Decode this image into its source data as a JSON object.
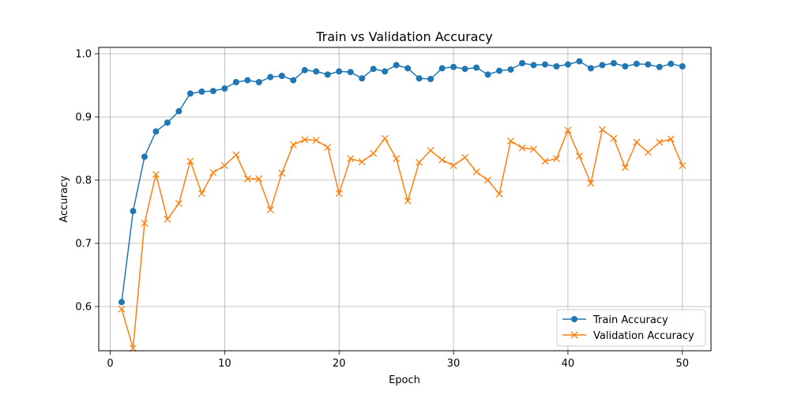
{
  "chart_data": {
    "type": "line",
    "title": "Train vs Validation Accuracy",
    "xlabel": "Epoch",
    "ylabel": "Accuracy",
    "xlim": [
      -1,
      52.5
    ],
    "ylim": [
      0.53,
      1.01
    ],
    "x_ticks": [
      0,
      10,
      20,
      30,
      40,
      50
    ],
    "y_ticks": [
      0.6,
      0.7,
      0.8,
      0.9,
      1.0
    ],
    "grid": true,
    "legend_position": "bottom-right",
    "x": [
      1,
      2,
      3,
      4,
      5,
      6,
      7,
      8,
      9,
      10,
      11,
      12,
      13,
      14,
      15,
      16,
      17,
      18,
      19,
      20,
      21,
      22,
      23,
      24,
      25,
      26,
      27,
      28,
      29,
      30,
      31,
      32,
      33,
      34,
      35,
      36,
      37,
      38,
      39,
      40,
      41,
      42,
      43,
      44,
      45,
      46,
      47,
      48,
      49,
      50
    ],
    "series": [
      {
        "name": "Train Accuracy",
        "color": "#1f77b4",
        "marker": "circle",
        "values": [
          0.607,
          0.751,
          0.837,
          0.877,
          0.891,
          0.909,
          0.937,
          0.94,
          0.941,
          0.945,
          0.955,
          0.958,
          0.955,
          0.963,
          0.965,
          0.958,
          0.974,
          0.972,
          0.967,
          0.972,
          0.971,
          0.961,
          0.976,
          0.972,
          0.982,
          0.977,
          0.961,
          0.96,
          0.977,
          0.979,
          0.976,
          0.978,
          0.967,
          0.973,
          0.975,
          0.985,
          0.982,
          0.983,
          0.98,
          0.983,
          0.988,
          0.977,
          0.982,
          0.985,
          0.98,
          0.984,
          0.983,
          0.979,
          0.984,
          0.98
        ]
      },
      {
        "name": "Validation Accuracy",
        "color": "#ff7f0e",
        "marker": "x",
        "values": [
          0.596,
          0.534,
          0.732,
          0.809,
          0.738,
          0.763,
          0.83,
          0.779,
          0.812,
          0.823,
          0.84,
          0.802,
          0.802,
          0.753,
          0.811,
          0.856,
          0.864,
          0.863,
          0.852,
          0.779,
          0.834,
          0.829,
          0.842,
          0.866,
          0.834,
          0.767,
          0.828,
          0.847,
          0.832,
          0.823,
          0.836,
          0.813,
          0.8,
          0.778,
          0.862,
          0.851,
          0.849,
          0.83,
          0.834,
          0.879,
          0.838,
          0.795,
          0.88,
          0.866,
          0.82,
          0.86,
          0.844,
          0.86,
          0.865,
          0.823
        ]
      }
    ]
  }
}
